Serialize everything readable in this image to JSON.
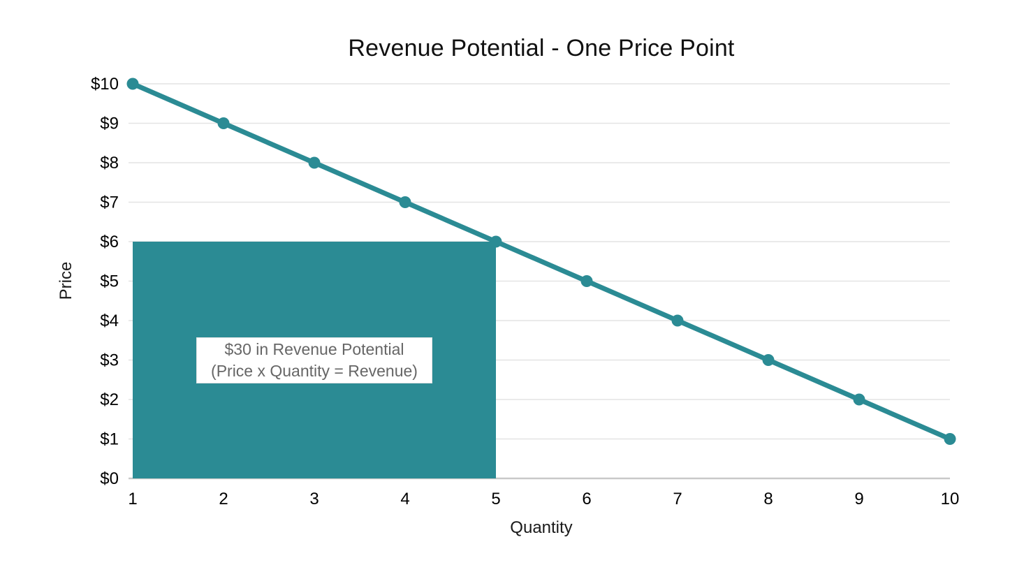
{
  "chart_data": {
    "type": "line",
    "title": "Revenue Potential - One Price Point",
    "xlabel": "Quantity",
    "ylabel": "Price",
    "x": [
      1,
      2,
      3,
      4,
      5,
      6,
      7,
      8,
      9,
      10
    ],
    "series": [
      {
        "name": "Price",
        "values": [
          10,
          9,
          8,
          7,
          6,
          5,
          4,
          3,
          2,
          1
        ],
        "color": "#2B8B94",
        "marker": "circle",
        "marker_radius": 8.5,
        "line_width": 7
      }
    ],
    "xlim": [
      1,
      10
    ],
    "ylim": [
      0,
      10
    ],
    "x_tick_labels": [
      "1",
      "2",
      "3",
      "4",
      "5",
      "6",
      "7",
      "8",
      "9",
      "10"
    ],
    "y_tick_labels": [
      "$0",
      "$1",
      "$2",
      "$3",
      "$4",
      "$5",
      "$6",
      "$7",
      "$8",
      "$9",
      "$10"
    ],
    "grid": "horizontal-only",
    "legend": "none",
    "highlight_rect": {
      "x0": 1,
      "y0": 0,
      "x1": 5,
      "y1": 6,
      "fill": "#2B8B94",
      "meaning": "Revenue area at price $6 and quantity 5"
    },
    "annotation": {
      "line1": "$30 in Revenue Potential",
      "line2": "(Price x Quantity = Revenue)",
      "bg": "#FFFFFF",
      "text_color": "#666666"
    },
    "colors": {
      "accent": "#2B8B94",
      "gridline": "#E4E4E4",
      "axis_line": "#C9C9C9",
      "tick_text": "#000000",
      "title_text": "#111111",
      "background": "#FFFFFF"
    }
  }
}
